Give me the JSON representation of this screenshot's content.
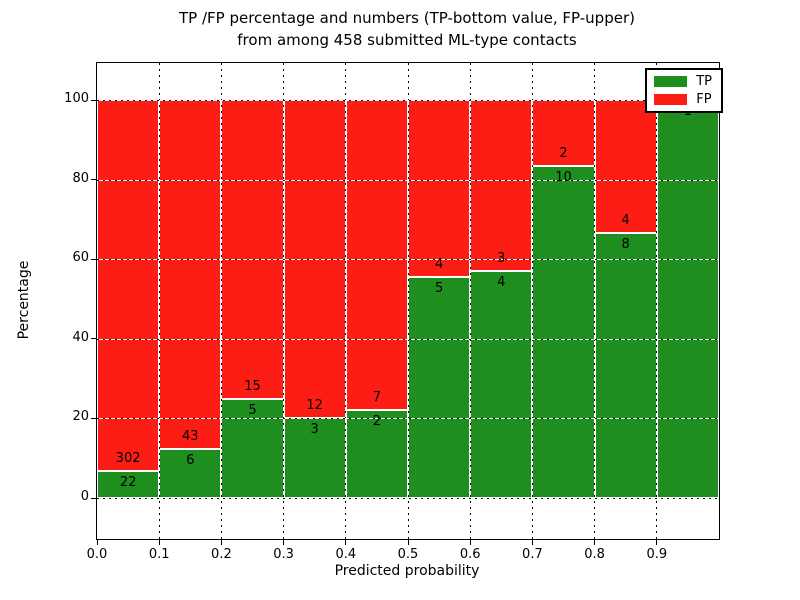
{
  "title": {
    "line1": "TP /FP percentage and numbers (TP-bottom value, FP-upper)",
    "line2": "from among 458 submitted ML-type contacts"
  },
  "axes": {
    "xlabel": "Predicted probability",
    "ylabel": "Percentage"
  },
  "legend": {
    "items": [
      {
        "label": "TP",
        "color": "#1e8e1e"
      },
      {
        "label": "FP",
        "color": "#fc1d14"
      }
    ],
    "position": "upper right"
  },
  "chart_data": {
    "type": "bar",
    "stacked": true,
    "normalized_to_percent": true,
    "title": "TP /FP percentage and numbers (TP-bottom value, FP-upper) from among 458 submitted ML-type contacts",
    "xlabel": "Predicted probability",
    "ylabel": "Percentage",
    "x_bin_edges": [
      0.0,
      0.1,
      0.2,
      0.3,
      0.4,
      0.5,
      0.6,
      0.7,
      0.8,
      0.9,
      1.0
    ],
    "series": [
      {
        "name": "TP",
        "color": "#1e8e1e",
        "counts": [
          22,
          6,
          5,
          3,
          2,
          5,
          4,
          10,
          8,
          1
        ]
      },
      {
        "name": "FP",
        "color": "#fc1d14",
        "counts": [
          302,
          43,
          15,
          12,
          7,
          4,
          3,
          2,
          4,
          0
        ]
      }
    ],
    "tp_percent_per_bin": [
      6.8,
      12.2,
      25.0,
      20.0,
      22.2,
      55.6,
      57.1,
      83.3,
      66.7,
      100.0
    ],
    "total_contacts": 458,
    "x_ticks": [
      "0.0",
      "0.1",
      "0.2",
      "0.3",
      "0.4",
      "0.5",
      "0.6",
      "0.7",
      "0.8",
      "0.9"
    ],
    "y_ticks": [
      0,
      20,
      40,
      60,
      80,
      100
    ],
    "xlim": [
      0.0,
      1.0
    ],
    "ylim": [
      -10,
      110
    ],
    "grid": true,
    "grid_style": "dotted",
    "legend_position": "upper right"
  }
}
